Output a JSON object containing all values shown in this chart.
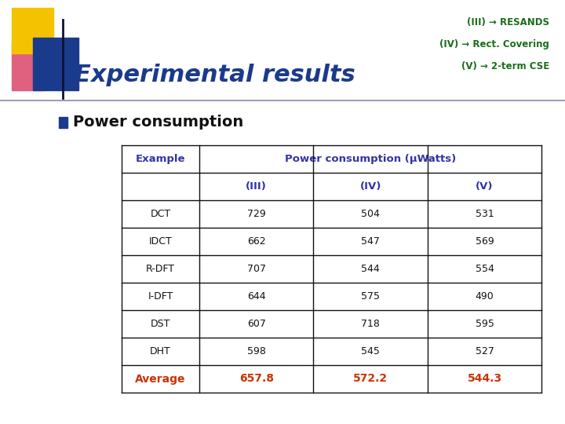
{
  "title": "Experimental results",
  "subtitle_lines": [
    "(III) → RESANDS",
    "(IV) → Rect. Covering",
    "(V) → 2-term CSE"
  ],
  "bullet": "Power consumption",
  "table_header1": "Example",
  "table_header2": "Power consumption (μWatts)",
  "table_subheaders": [
    "(III)",
    "(IV)",
    "(V)"
  ],
  "table_rows": [
    [
      "DCT",
      "729",
      "504",
      "531"
    ],
    [
      "IDCT",
      "662",
      "547",
      "569"
    ],
    [
      "R-DFT",
      "707",
      "544",
      "554"
    ],
    [
      "I-DFT",
      "644",
      "575",
      "490"
    ],
    [
      "DST",
      "607",
      "718",
      "595"
    ],
    [
      "DHT",
      "598",
      "545",
      "527"
    ]
  ],
  "avg_row": [
    "Average",
    "657.8",
    "572.2",
    "544.3"
  ],
  "bg_color": "#ffffff",
  "title_color": "#1a3a8c",
  "subtitle_color": "#1a6e1a",
  "table_header_color": "#3333aa",
  "avg_color": "#cc3300",
  "table_border_color": "#111111",
  "logo_yellow": "#f5c200",
  "logo_blue": "#1a3a8c",
  "logo_pink": "#e06080",
  "bullet_color": "#1a3a8c",
  "data_color": "#111111"
}
